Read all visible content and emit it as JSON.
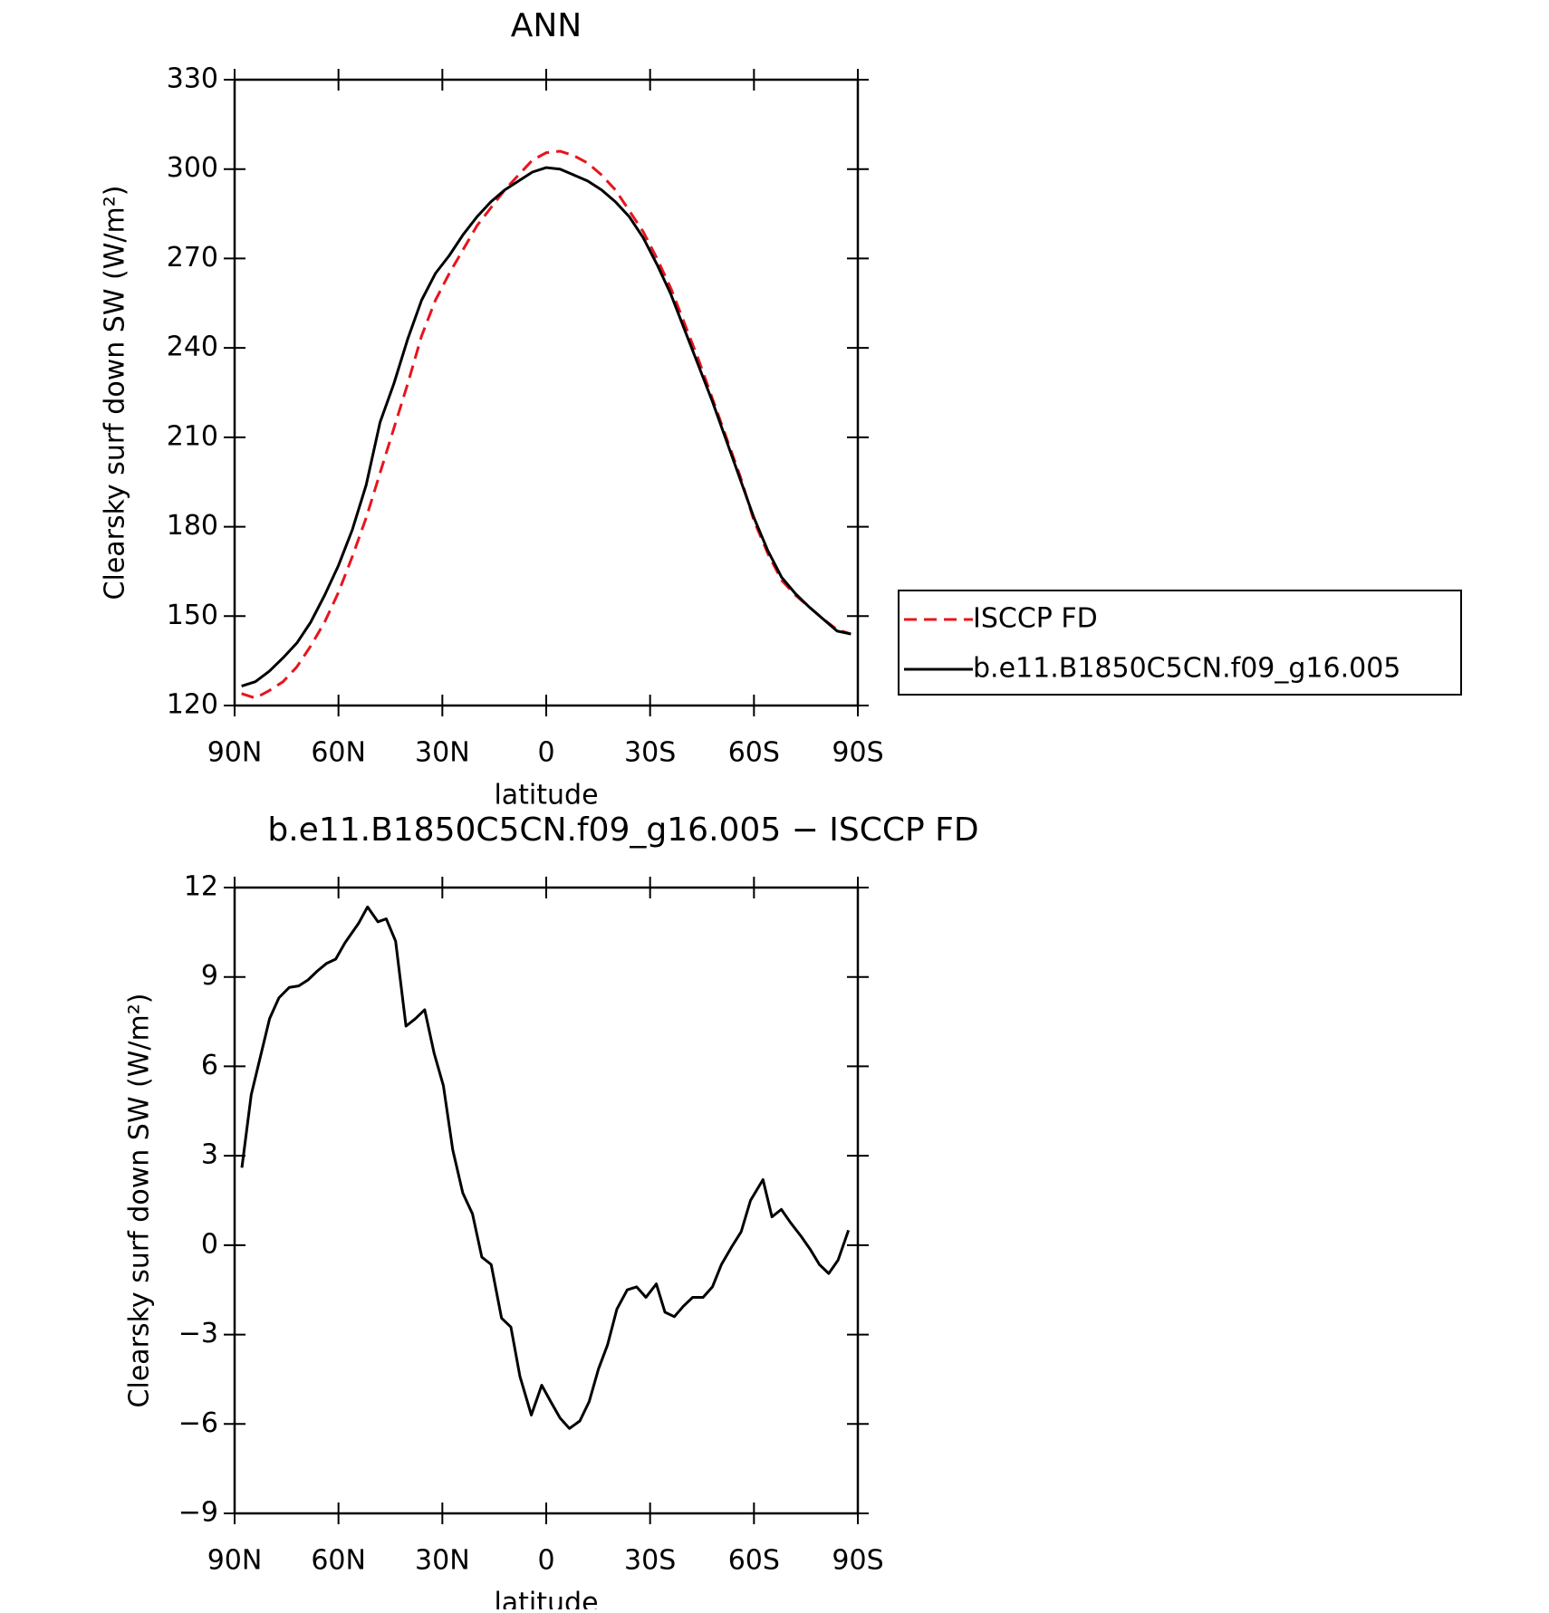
{
  "chart_data": [
    {
      "type": "line",
      "title": "ANN",
      "x_label": "latitude",
      "y_label": "Clearsky surf down SW (W/m²)",
      "xlim": [
        90,
        -90
      ],
      "ylim": [
        120,
        330
      ],
      "xticks": [
        {
          "value": 90,
          "label": "90N"
        },
        {
          "value": 60,
          "label": "60N"
        },
        {
          "value": 30,
          "label": "30N"
        },
        0,
        {
          "value": -30,
          "label": "30S"
        },
        {
          "value": -60,
          "label": "60S"
        },
        {
          "value": -90,
          "label": "90S"
        }
      ],
      "yticks": [
        120,
        150,
        180,
        210,
        240,
        270,
        300,
        330
      ],
      "legend": "right",
      "x": [
        88,
        84,
        80,
        76,
        72,
        68,
        64,
        60,
        56,
        52,
        48,
        44,
        40,
        36,
        32,
        28,
        24,
        20,
        16,
        12,
        8,
        4,
        0,
        -4,
        -8,
        -12,
        -16,
        -20,
        -24,
        -28,
        -32,
        -36,
        -40,
        -44,
        -48,
        -52,
        -56,
        -60,
        -64,
        -68,
        -72,
        -76,
        -80,
        -84,
        -88
      ],
      "series": [
        {
          "name": "ISCCP FD",
          "color": "#e8141c",
          "linestyle": "dashed",
          "values": [
            124,
            122.5,
            125,
            128,
            133,
            140,
            148,
            158,
            170,
            183,
            198,
            213,
            228,
            244,
            256,
            265,
            273,
            281,
            287,
            293,
            298,
            303,
            305.5,
            306,
            304.5,
            302,
            298,
            293,
            286,
            279,
            270,
            260,
            248,
            236,
            223,
            210,
            197,
            182,
            171,
            162,
            157,
            153,
            149,
            145.5,
            144
          ]
        },
        {
          "name": "b.e11.B1850C5CN.f09_g16.005",
          "color": "#000000",
          "linestyle": "solid",
          "values": [
            126.5,
            128,
            131.5,
            136,
            141,
            148,
            157,
            167,
            179,
            194,
            215,
            228,
            243,
            256,
            265,
            271,
            278,
            284,
            289,
            293,
            296,
            299,
            300.5,
            300,
            298,
            296,
            293,
            289,
            284,
            277,
            268,
            258,
            246,
            234,
            222,
            209,
            196,
            183,
            172,
            163,
            157.5,
            153,
            149,
            145,
            144
          ]
        }
      ]
    },
    {
      "type": "line",
      "title": "b.e11.B1850C5CN.f09_g16.005 − ISCCP FD",
      "x_label": "latitude",
      "y_label": "Clearsky surf down SW (W/m²)",
      "xlim": [
        90,
        -90
      ],
      "ylim": [
        -9,
        12
      ],
      "xticks": [
        {
          "value": 90,
          "label": "90N"
        },
        {
          "value": 60,
          "label": "60N"
        },
        {
          "value": 30,
          "label": "30N"
        },
        0,
        {
          "value": -30,
          "label": "30S"
        },
        {
          "value": -60,
          "label": "60S"
        },
        {
          "value": -90,
          "label": "90S"
        }
      ],
      "yticks": [
        {
          "value": -9,
          "label": "−9"
        },
        {
          "value": -6,
          "label": "−6"
        },
        {
          "value": -3,
          "label": "−3"
        },
        0,
        3,
        6,
        9,
        12
      ],
      "x": [
        87.9,
        85.2,
        79.9,
        77.2,
        74.2,
        71.5,
        68.8,
        66.1,
        63.5,
        60.8,
        58.1,
        54.2,
        51.6,
        48.6,
        46.2,
        43.5,
        40.5,
        37.8,
        35.1,
        32.4,
        29.7,
        27.0,
        24.1,
        21.3,
        18.6,
        15.9,
        12.9,
        10.2,
        7.6,
        4.3,
        1.3,
        -1.3,
        -4.0,
        -6.7,
        -9.7,
        -12.4,
        -15.1,
        -17.7,
        -20.4,
        -23.4,
        -26.1,
        -28.8,
        -31.8,
        -34.3,
        -37.0,
        -39.6,
        -42.3,
        -45.3,
        -48.0,
        -50.6,
        -53.6,
        -56.3,
        -59.0,
        -62.6,
        -65.2,
        -67.9,
        -70.6,
        -73.6,
        -76.3,
        -78.9,
        -81.6,
        -84.3,
        -87.3
      ],
      "series": [
        {
          "color": "#000000",
          "linestyle": "solid",
          "values": [
            2.6,
            5.05,
            7.6,
            8.3,
            8.65,
            8.7,
            8.9,
            9.2,
            9.45,
            9.6,
            10.15,
            10.8,
            11.35,
            10.85,
            10.95,
            10.2,
            7.35,
            7.6,
            7.9,
            6.45,
            5.35,
            3.2,
            1.75,
            1.05,
            -0.4,
            -0.65,
            -2.45,
            -2.75,
            -4.4,
            -5.7,
            -4.7,
            -5.25,
            -5.8,
            -6.15,
            -5.9,
            -5.25,
            -4.15,
            -3.35,
            -2.15,
            -1.5,
            -1.4,
            -1.75,
            -1.3,
            -2.25,
            -2.4,
            -2.05,
            -1.75,
            -1.75,
            -1.4,
            -0.65,
            -0.05,
            0.45,
            1.5,
            2.2,
            0.95,
            1.2,
            0.75,
            0.3,
            -0.15,
            -0.65,
            -0.95,
            -0.5,
            0.5
          ]
        }
      ]
    }
  ]
}
